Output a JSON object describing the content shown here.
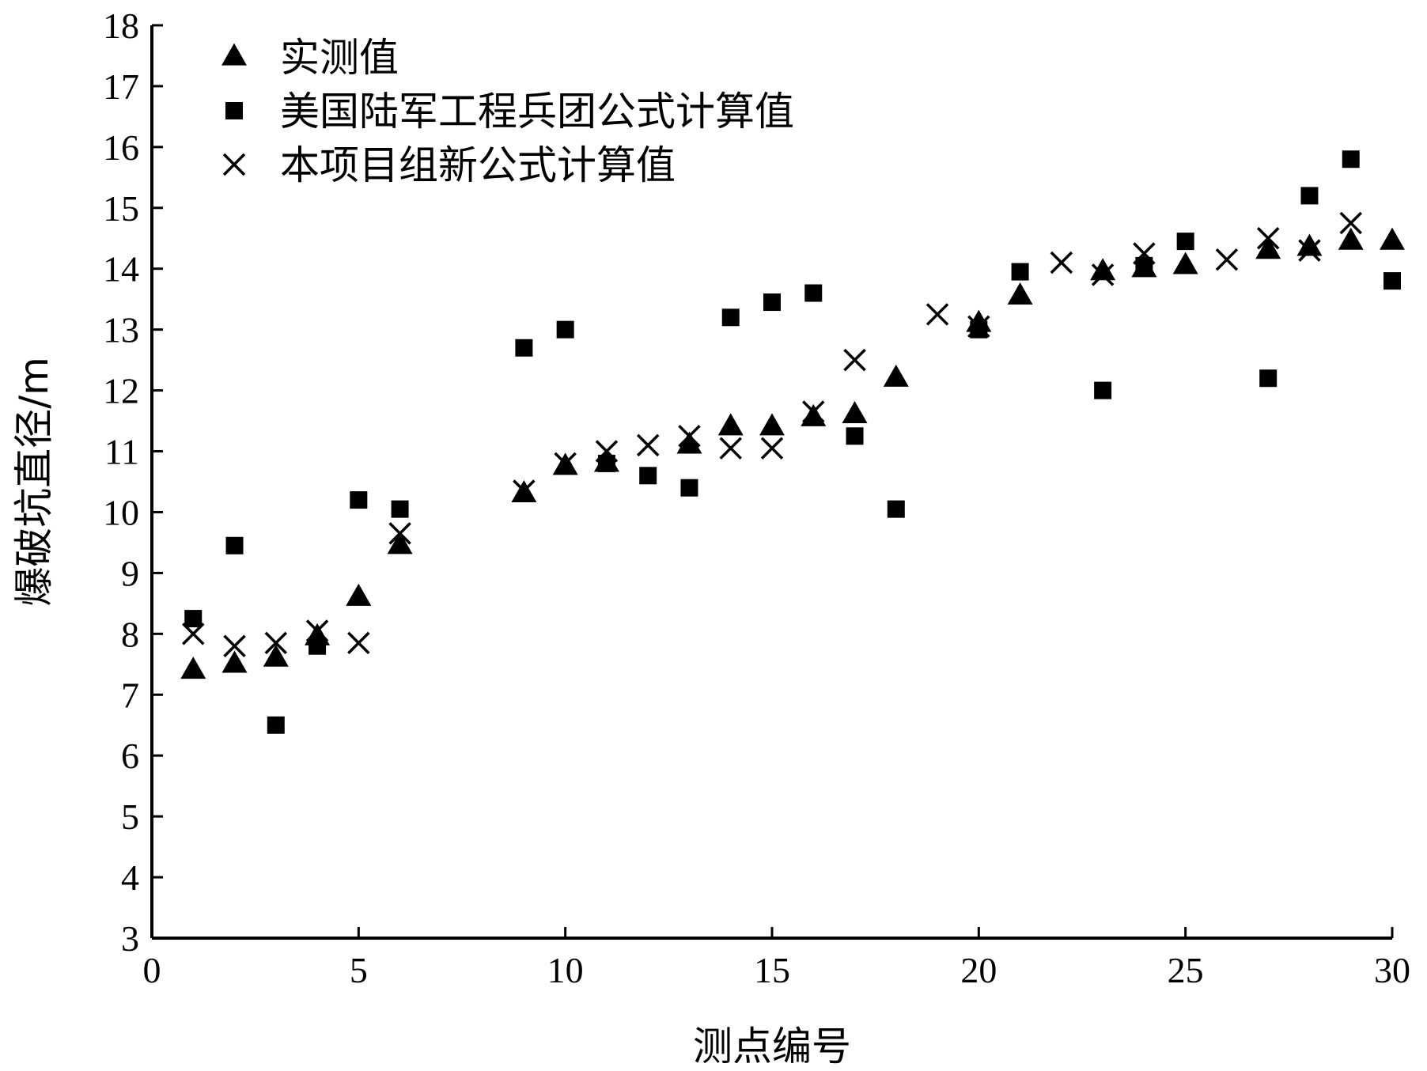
{
  "chart_data": {
    "type": "scatter",
    "title": "",
    "xlabel": "测点编号",
    "ylabel": "爆破坑直径/m",
    "xlim": [
      0,
      30
    ],
    "ylim": [
      3,
      18
    ],
    "xticks": [
      0,
      5,
      10,
      15,
      20,
      25,
      30
    ],
    "yticks": [
      3,
      4,
      5,
      6,
      7,
      8,
      9,
      10,
      11,
      12,
      13,
      14,
      15,
      16,
      17,
      18
    ],
    "grid": false,
    "legend_position": "top-left",
    "series": [
      {
        "name": "实测值",
        "marker": "triangle",
        "x": [
          1,
          2,
          3,
          4,
          5,
          6,
          9,
          10,
          11,
          13,
          14,
          15,
          16,
          17,
          18,
          20,
          21,
          23,
          24,
          25,
          27,
          28,
          29,
          30
        ],
        "y": [
          7.4,
          7.5,
          7.6,
          7.95,
          8.6,
          9.45,
          10.3,
          10.75,
          10.8,
          11.1,
          11.4,
          11.4,
          11.55,
          11.6,
          12.2,
          13.1,
          13.55,
          13.95,
          14.0,
          14.05,
          14.3,
          14.35,
          14.45,
          14.45
        ]
      },
      {
        "name": "美国陆军工程兵团公式计算值",
        "marker": "square",
        "x": [
          1,
          2,
          3,
          4,
          5,
          6,
          9,
          10,
          11,
          12,
          13,
          14,
          15,
          16,
          17,
          18,
          20,
          21,
          23,
          24,
          25,
          27,
          28,
          29,
          30
        ],
        "y": [
          8.25,
          9.45,
          6.5,
          7.8,
          10.2,
          10.05,
          12.7,
          13.0,
          10.8,
          10.6,
          10.4,
          13.2,
          13.45,
          13.6,
          11.25,
          10.05,
          13.0,
          13.95,
          12.0,
          14.05,
          14.45,
          12.2,
          15.2,
          15.8,
          13.8
        ]
      },
      {
        "name": "本项目组新公式计算值",
        "marker": "x",
        "x": [
          1,
          2,
          3,
          4,
          5,
          6,
          9,
          10,
          11,
          12,
          13,
          14,
          15,
          16,
          17,
          19,
          20,
          22,
          23,
          24,
          26,
          27,
          28,
          29
        ],
        "y": [
          8.0,
          7.8,
          7.85,
          8.05,
          7.85,
          9.65,
          10.35,
          10.8,
          11.0,
          11.1,
          11.25,
          11.05,
          11.05,
          11.65,
          12.5,
          13.25,
          13.05,
          14.1,
          13.9,
          14.25,
          14.15,
          14.5,
          14.3,
          14.75
        ]
      }
    ]
  }
}
